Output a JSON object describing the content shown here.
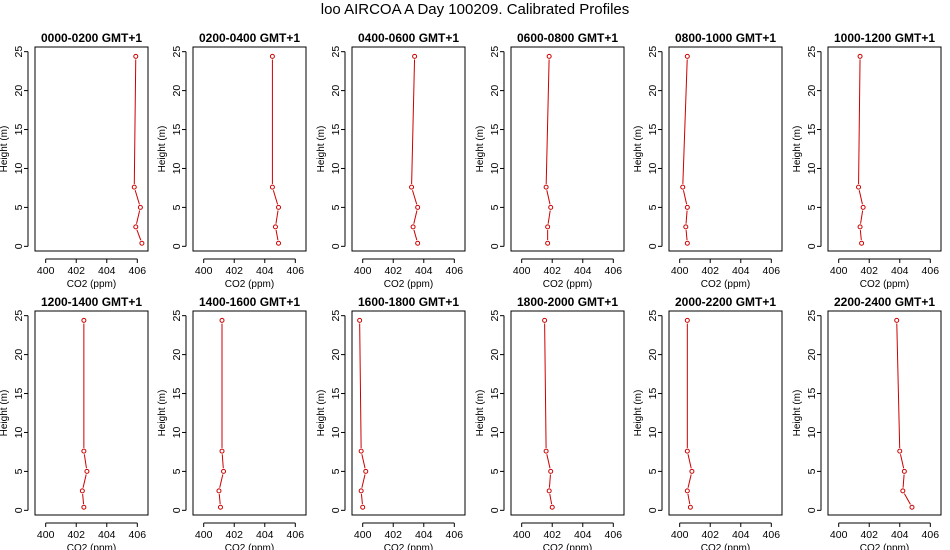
{
  "page": {
    "title": "loo AIRCOA A  Day 100209. Calibrated Profiles"
  },
  "chart_data": {
    "type": "line",
    "xlabel": "CO2 (ppm)",
    "ylabel": "Height (m)",
    "xlim": [
      399.3,
      406.7
    ],
    "ylim": [
      -0.6,
      25.6
    ],
    "xticks": [
      400,
      402,
      404,
      406
    ],
    "yticks": [
      0,
      5,
      10,
      15,
      20,
      25
    ],
    "heights": [
      24.4,
      7.6,
      5.0,
      2.5,
      0.4
    ],
    "line_color": "#cc0000",
    "panels": [
      {
        "title": "0000-0200 GMT+1",
        "co2": [
          405.9,
          405.8,
          406.2,
          405.9,
          406.3
        ]
      },
      {
        "title": "0200-0400 GMT+1",
        "co2": [
          404.5,
          404.5,
          404.9,
          404.7,
          404.9
        ]
      },
      {
        "title": "0400-0600 GMT+1",
        "co2": [
          403.4,
          403.2,
          403.6,
          403.3,
          403.6
        ]
      },
      {
        "title": "0600-0800 GMT+1",
        "co2": [
          401.8,
          401.6,
          401.9,
          401.7,
          401.7
        ]
      },
      {
        "title": "0800-1000 GMT+1",
        "co2": [
          400.5,
          400.2,
          400.5,
          400.4,
          400.5
        ]
      },
      {
        "title": "1000-1200 GMT+1",
        "co2": [
          401.4,
          401.3,
          401.6,
          401.4,
          401.5
        ]
      },
      {
        "title": "1200-1400 GMT+1",
        "co2": [
          402.5,
          402.5,
          402.7,
          402.4,
          402.5
        ]
      },
      {
        "title": "1400-1600 GMT+1",
        "co2": [
          401.2,
          401.2,
          401.3,
          401.0,
          401.1
        ]
      },
      {
        "title": "1600-1800 GMT+1",
        "co2": [
          399.8,
          399.9,
          400.2,
          399.9,
          400.0
        ]
      },
      {
        "title": "1800-2000 GMT+1",
        "co2": [
          401.5,
          401.6,
          401.9,
          401.8,
          402.0
        ]
      },
      {
        "title": "2000-2200 GMT+1",
        "co2": [
          400.5,
          400.5,
          400.8,
          400.5,
          400.7
        ]
      },
      {
        "title": "2200-2400 GMT+1",
        "co2": [
          403.8,
          404.0,
          404.3,
          404.2,
          404.8
        ]
      }
    ]
  }
}
